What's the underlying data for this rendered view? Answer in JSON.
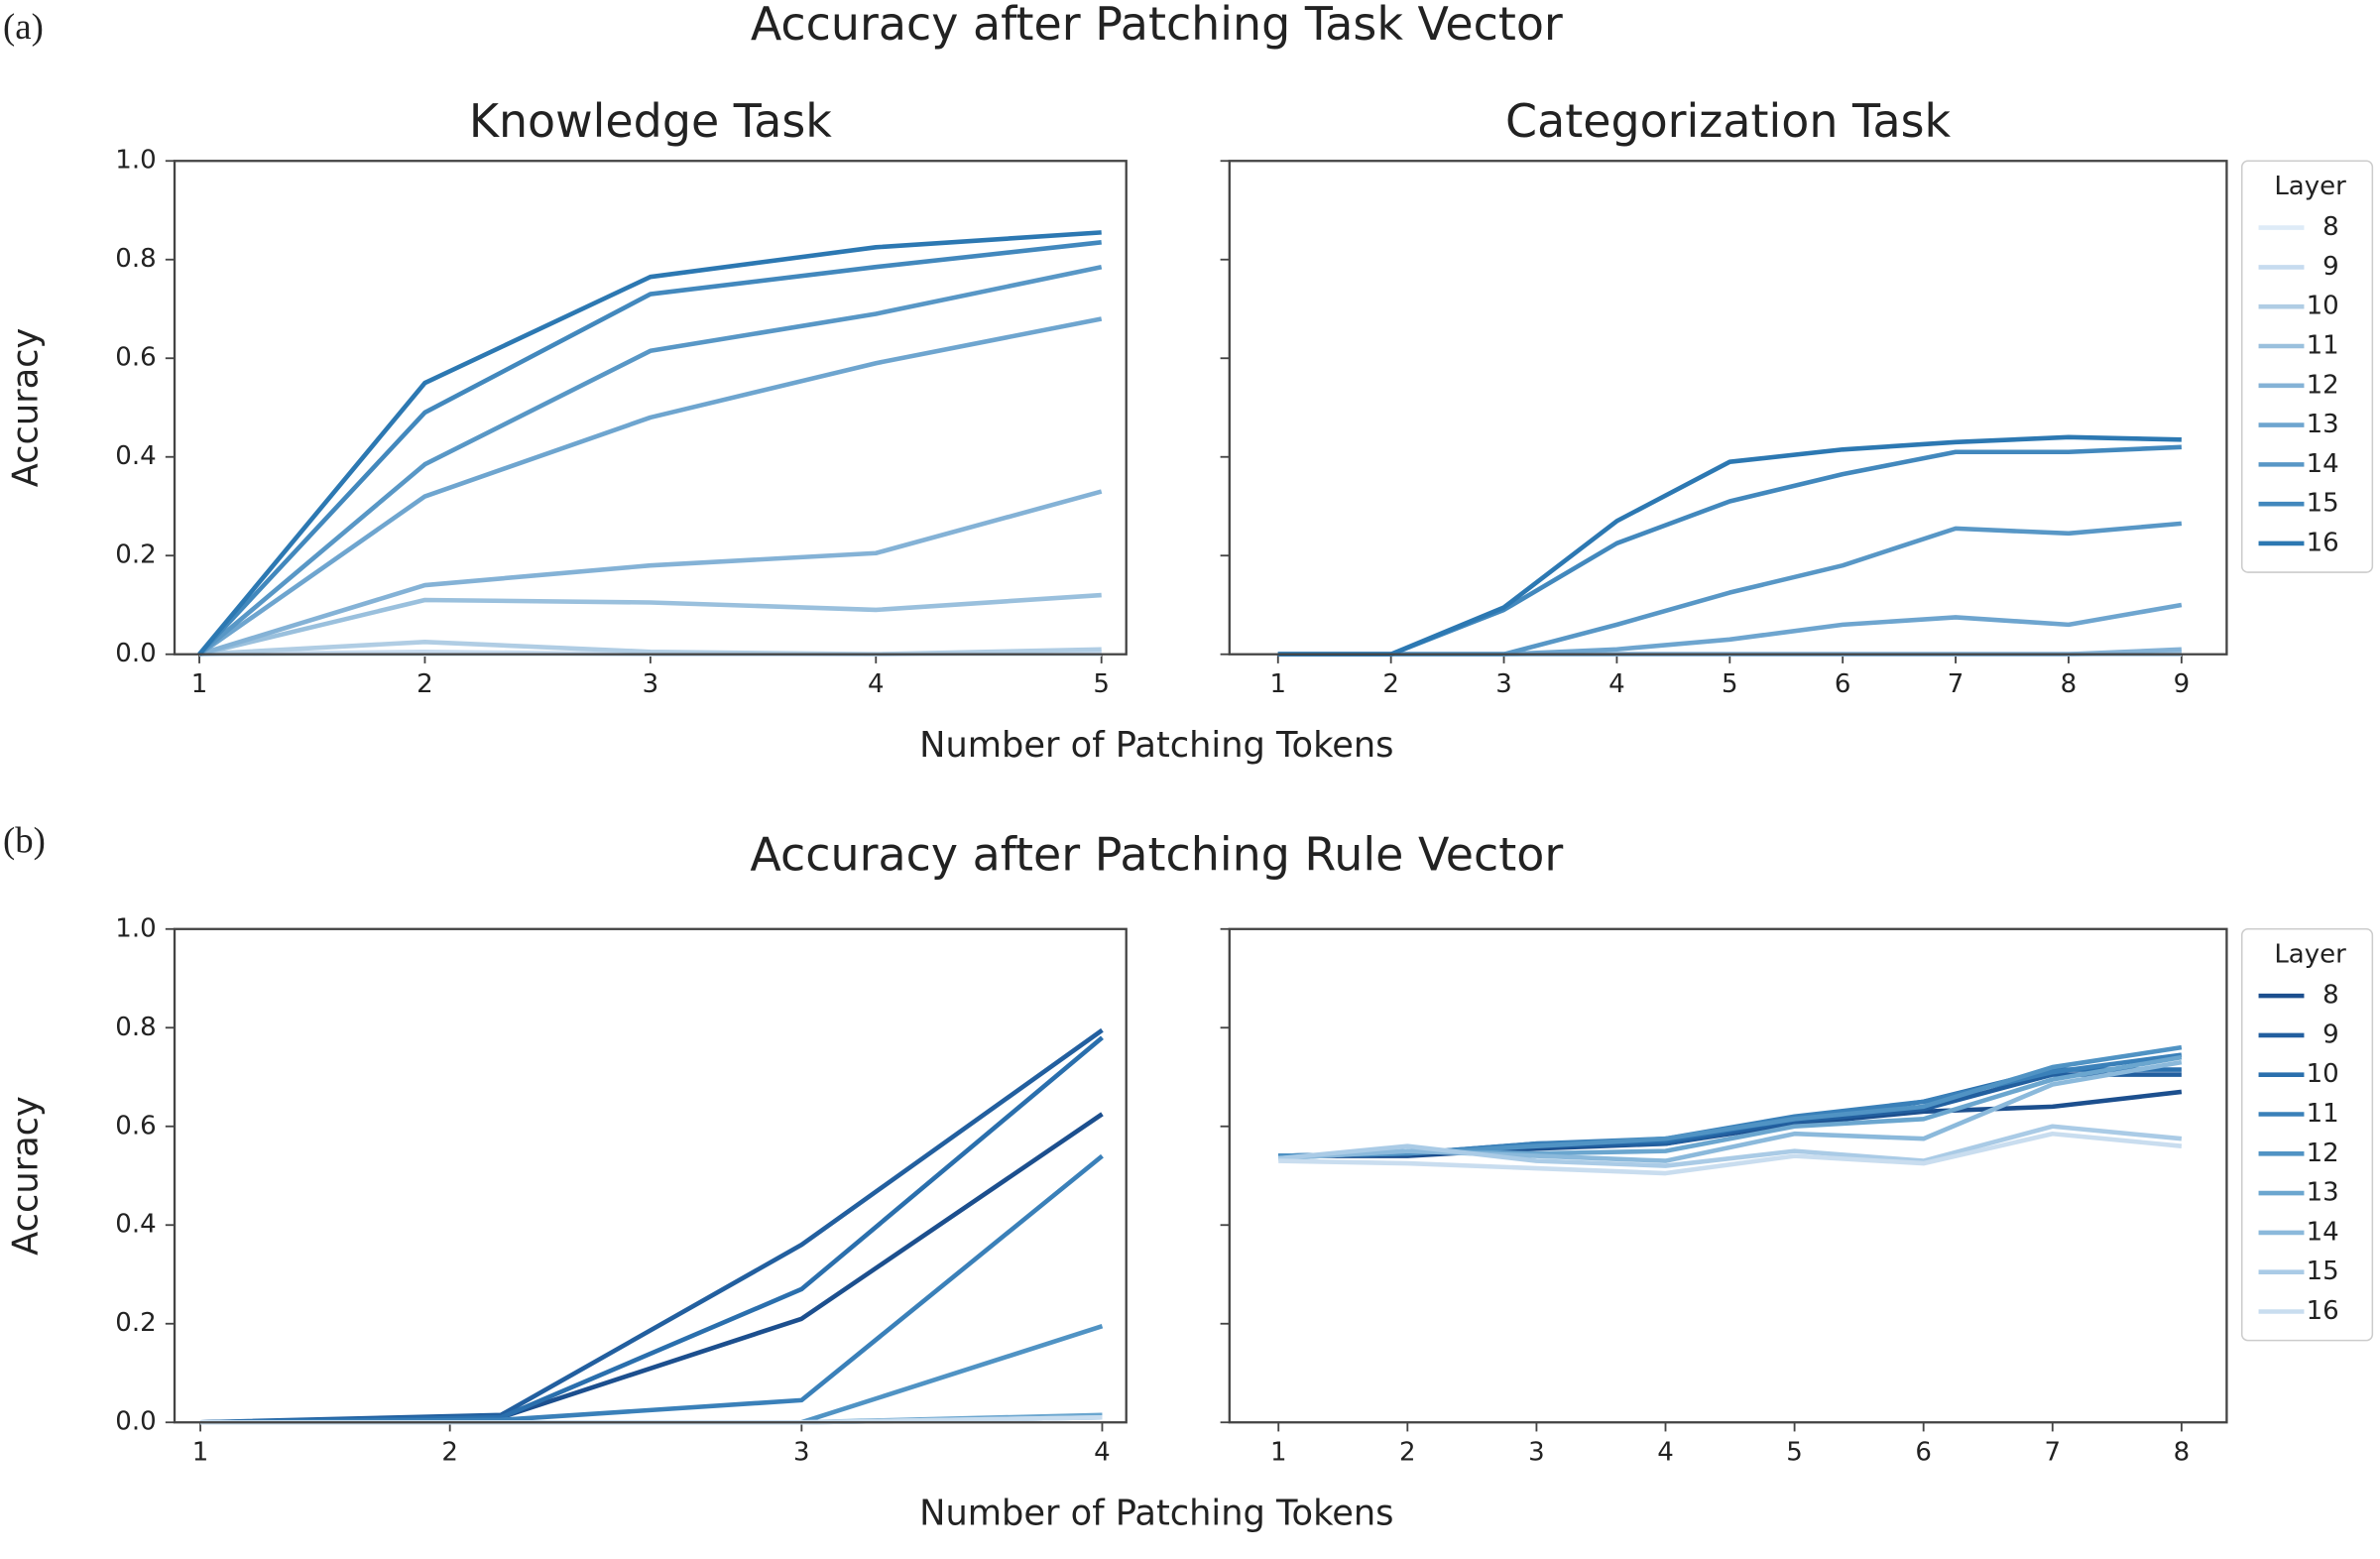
{
  "figure": {
    "panels": [
      {
        "label": "(a)",
        "title": "Accuracy after Patching Task Vector",
        "xlabel": "Number of Patching Tokens"
      },
      {
        "label": "(b)",
        "title": "Accuracy after Patching Rule Vector",
        "xlabel": "Number of Patching Tokens"
      }
    ]
  },
  "chart_data": [
    {
      "type": "line",
      "title": "Knowledge Task",
      "ylabel": "Accuracy",
      "x": [
        1,
        2,
        3,
        4,
        5
      ],
      "xlim": [
        0.89,
        5.11
      ],
      "xticks": [
        1,
        2,
        3,
        4,
        5
      ],
      "ylim": [
        0,
        1
      ],
      "yticks": [
        {
          "value": 0,
          "label": "0.0"
        },
        {
          "value": 0.2,
          "label": "0.2"
        },
        {
          "value": 0.4,
          "label": "0.4"
        },
        {
          "value": 0.6,
          "label": "0.6"
        },
        {
          "value": 0.8,
          "label": "0.8"
        },
        {
          "value": 1,
          "label": "1.0"
        }
      ],
      "series": [
        {
          "color": "#deebf7",
          "values": [
            0,
            0,
            0,
            0,
            0
          ]
        },
        {
          "color": "#c6dbef",
          "values": [
            0,
            0.005,
            0,
            0,
            0.005
          ]
        },
        {
          "color": "#b0cde4",
          "values": [
            0,
            0.025,
            0.005,
            0,
            0.01
          ]
        },
        {
          "color": "#9ac0dd",
          "values": [
            0,
            0.11,
            0.105,
            0.09,
            0.12
          ]
        },
        {
          "color": "#84b2d6",
          "values": [
            0,
            0.14,
            0.18,
            0.205,
            0.33
          ]
        },
        {
          "color": "#6ea5cf",
          "values": [
            0,
            0.32,
            0.48,
            0.59,
            0.68
          ]
        },
        {
          "color": "#5897c6",
          "values": [
            0,
            0.385,
            0.615,
            0.69,
            0.785
          ]
        },
        {
          "color": "#4288bd",
          "values": [
            0,
            0.49,
            0.73,
            0.785,
            0.835
          ]
        },
        {
          "color": "#2c78b2",
          "values": [
            0,
            0.55,
            0.765,
            0.825,
            0.855
          ]
        }
      ]
    },
    {
      "type": "line",
      "title": "Categorization Task",
      "legend": "outside right",
      "legend_title": "Layer",
      "x": [
        1,
        2,
        3,
        4,
        5,
        6,
        7,
        8,
        9
      ],
      "xlim": [
        0.57,
        9.4
      ],
      "xticks": [
        1,
        2,
        3,
        4,
        5,
        6,
        7,
        8,
        9
      ],
      "ylim": [
        0,
        1
      ],
      "yticks": [
        0,
        0.2,
        0.4,
        0.6,
        0.8,
        1
      ],
      "series": [
        {
          "name": "8",
          "color": "#deebf7",
          "values": [
            0,
            0,
            0,
            0,
            0,
            0,
            0,
            0,
            0
          ]
        },
        {
          "name": "9",
          "color": "#c6dbef",
          "values": [
            0,
            0,
            0,
            0,
            0,
            0,
            0,
            0,
            0
          ]
        },
        {
          "name": "10",
          "color": "#b0cde4",
          "values": [
            0,
            0,
            0,
            0,
            0,
            0,
            0,
            0,
            0
          ]
        },
        {
          "name": "11",
          "color": "#9ac0dd",
          "values": [
            0,
            0,
            0,
            0,
            0,
            0,
            0,
            0,
            0.005
          ]
        },
        {
          "name": "12",
          "color": "#84b2d6",
          "values": [
            0,
            0,
            0,
            0,
            0,
            0,
            0,
            0,
            0.01
          ]
        },
        {
          "name": "13",
          "color": "#6ea5cf",
          "values": [
            0,
            0,
            0,
            0.01,
            0.03,
            0.06,
            0.075,
            0.06,
            0.1
          ]
        },
        {
          "name": "14",
          "color": "#5897c6",
          "values": [
            0,
            0,
            0,
            0.06,
            0.125,
            0.18,
            0.255,
            0.245,
            0.265
          ]
        },
        {
          "name": "15",
          "color": "#4288bd",
          "values": [
            0,
            0,
            0.09,
            0.225,
            0.31,
            0.365,
            0.41,
            0.41,
            0.42
          ]
        },
        {
          "name": "16",
          "color": "#2c78b2",
          "values": [
            0,
            0,
            0.095,
            0.27,
            0.39,
            0.415,
            0.43,
            0.44,
            0.435
          ]
        }
      ]
    },
    {
      "type": "line",
      "ylabel": "Accuracy",
      "x": [
        1,
        2,
        3,
        4
      ],
      "xlim": [
        0.914,
        4.08
      ],
      "xticks": [
        1,
        {
          "value": 1.83,
          "label": "2"
        },
        3,
        4
      ],
      "ylim": [
        0,
        1
      ],
      "yticks": [
        {
          "value": 0,
          "label": "0.0"
        },
        {
          "value": 0.2,
          "label": "0.2"
        },
        {
          "value": 0.4,
          "label": "0.4"
        },
        {
          "value": 0.6,
          "label": "0.6"
        },
        {
          "value": 0.8,
          "label": "0.8"
        },
        {
          "value": 1,
          "label": "1.0"
        }
      ],
      "series": [
        {
          "color": "#1c4f8e",
          "values": [
            0,
            0.01,
            0.21,
            0.625
          ]
        },
        {
          "color": "#225f9f",
          "values": [
            0,
            0.015,
            0.36,
            0.795
          ]
        },
        {
          "color": "#2a6fad",
          "values": [
            0,
            0.01,
            0.27,
            0.78
          ]
        },
        {
          "color": "#3a80b9",
          "values": [
            0,
            0.005,
            0.045,
            0.54
          ]
        },
        {
          "color": "#5093c4",
          "values": [
            0,
            0,
            0,
            0.195
          ]
        },
        {
          "color": "#6ba6cf",
          "values": [
            0,
            0,
            0,
            0.015
          ]
        },
        {
          "color": "#8bb9db",
          "values": [
            0,
            0,
            0,
            0.01
          ]
        },
        {
          "color": "#aacbe6",
          "values": [
            0,
            0,
            0,
            0.01
          ]
        },
        {
          "color": "#c9ddef",
          "values": [
            0,
            0,
            0,
            0.01
          ]
        }
      ]
    },
    {
      "type": "line",
      "legend": "outside right",
      "legend_title": "Layer",
      "x": [
        1,
        2,
        3,
        4,
        5,
        6,
        7,
        8
      ],
      "xlim": [
        0.62,
        8.35
      ],
      "xticks": [
        1,
        2,
        3,
        4,
        5,
        6,
        7,
        8
      ],
      "ylim": [
        0,
        1
      ],
      "yticks": [
        0,
        0.2,
        0.4,
        0.6,
        0.8,
        1
      ],
      "series": [
        {
          "name": "8",
          "color": "#1c4f8e",
          "values": [
            0.54,
            0.54,
            0.555,
            0.565,
            0.605,
            0.63,
            0.64,
            0.67
          ]
        },
        {
          "name": "9",
          "color": "#225f9f",
          "values": [
            0.54,
            0.545,
            0.56,
            0.565,
            0.61,
            0.635,
            0.705,
            0.705
          ]
        },
        {
          "name": "10",
          "color": "#2a6fad",
          "values": [
            0.54,
            0.545,
            0.565,
            0.57,
            0.615,
            0.65,
            0.715,
            0.715
          ]
        },
        {
          "name": "11",
          "color": "#3a80b9",
          "values": [
            0.54,
            0.545,
            0.565,
            0.575,
            0.62,
            0.65,
            0.71,
            0.745
          ]
        },
        {
          "name": "12",
          "color": "#5093c4",
          "values": [
            0.54,
            0.545,
            0.56,
            0.575,
            0.615,
            0.64,
            0.72,
            0.76
          ]
        },
        {
          "name": "13",
          "color": "#6ba6cf",
          "values": [
            0.535,
            0.55,
            0.545,
            0.55,
            0.6,
            0.615,
            0.695,
            0.74
          ]
        },
        {
          "name": "14",
          "color": "#8bb9db",
          "values": [
            0.535,
            0.55,
            0.54,
            0.53,
            0.585,
            0.575,
            0.685,
            0.73
          ]
        },
        {
          "name": "15",
          "color": "#aacbe6",
          "values": [
            0.535,
            0.56,
            0.53,
            0.52,
            0.55,
            0.53,
            0.6,
            0.575
          ]
        },
        {
          "name": "16",
          "color": "#c9ddef",
          "values": [
            0.53,
            0.525,
            0.515,
            0.505,
            0.54,
            0.525,
            0.585,
            0.56
          ]
        }
      ]
    }
  ]
}
